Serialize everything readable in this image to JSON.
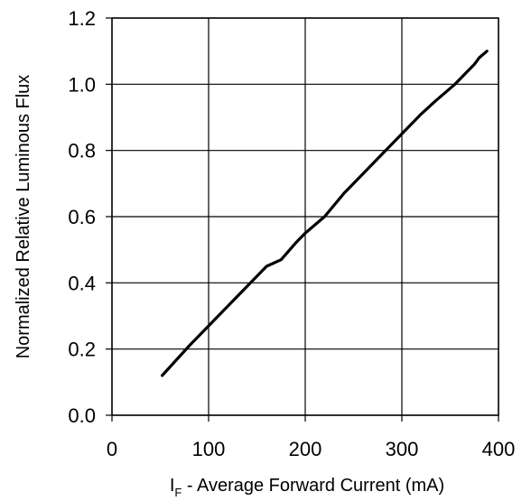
{
  "chart_data": {
    "type": "line",
    "title": "",
    "xlabel": {
      "main": "I",
      "subscript": "F",
      "rest": " - Average Forward Current (mA)"
    },
    "ylabel": "Normalized Relative Luminous Flux",
    "xlim": [
      0,
      400
    ],
    "ylim": [
      0,
      1.2
    ],
    "x_ticks": [
      "0",
      "100",
      "200",
      "300",
      "400"
    ],
    "y_ticks": [
      "0.0",
      "0.2",
      "0.4",
      "0.6",
      "0.8",
      "1.0",
      "1.2"
    ],
    "grid": true,
    "series": [
      {
        "x": [
          52,
          80,
          100,
          120,
          140,
          160,
          175,
          190,
          200,
          220,
          240,
          260,
          280,
          300,
          320,
          335,
          355,
          365,
          375,
          380,
          388
        ],
        "y": [
          0.12,
          0.21,
          0.27,
          0.33,
          0.39,
          0.45,
          0.47,
          0.52,
          0.55,
          0.6,
          0.67,
          0.73,
          0.79,
          0.85,
          0.91,
          0.95,
          1.0,
          1.03,
          1.06,
          1.08,
          1.1
        ]
      }
    ]
  }
}
